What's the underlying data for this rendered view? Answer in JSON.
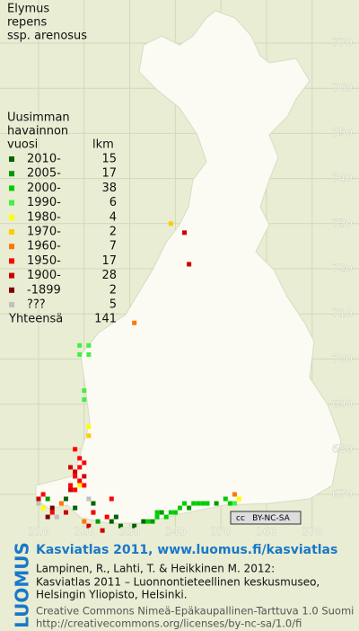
{
  "map": {
    "title": [
      "Elymus",
      "repens",
      "ssp. arenosus"
    ],
    "legend_header": [
      "Uusimman",
      "havainnon",
      "vuosi"
    ],
    "count_header": "lkm",
    "legend": [
      {
        "label": "2010-",
        "count": 15,
        "color": "#006400",
        "squares": [
          [
            322,
            666
          ],
          [
            326,
            664
          ],
          [
            328,
            663
          ],
          [
            331,
            663
          ],
          [
            333,
            664
          ],
          [
            327,
            665
          ],
          [
            318,
            667
          ],
          [
            316,
            669
          ],
          [
            322,
            668
          ]
        ]
      },
      {
        "label": "2005-",
        "count": 17,
        "color": "#009900",
        "squares": [
          [
            335,
            664
          ],
          [
            337,
            666
          ],
          [
            343,
            667
          ],
          [
            349,
            668
          ],
          [
            323,
            664
          ],
          [
            312,
            669
          ]
        ]
      },
      {
        "label": "2000-",
        "count": 38,
        "color": "#00cc00",
        "squares": [
          [
            336,
            665
          ],
          [
            338,
            665
          ],
          [
            339,
            666
          ],
          [
            340,
            666
          ],
          [
            341,
            667
          ],
          [
            342,
            668
          ],
          [
            344,
            668
          ],
          [
            345,
            668
          ],
          [
            346,
            668
          ],
          [
            347,
            668
          ],
          [
            351,
            669
          ],
          [
            352,
            668
          ],
          [
            334,
            664
          ],
          [
            336,
            666
          ]
        ]
      },
      {
        "label": "1990-",
        "count": 6,
        "color": "#44ee44",
        "squares": [
          [
            319,
            703
          ],
          [
            321,
            703
          ],
          [
            319,
            701
          ],
          [
            321,
            701
          ],
          [
            320,
            693
          ],
          [
            320,
            691
          ],
          [
            353,
            668
          ]
        ]
      },
      {
        "label": "1980-",
        "count": 4,
        "color": "#ffff00",
        "squares": [
          [
            321,
            685
          ],
          [
            311,
            667
          ],
          [
            354,
            669
          ],
          [
            319,
            672
          ]
        ]
      },
      {
        "label": "1970-",
        "count": 2,
        "color": "#ffcc00",
        "squares": [
          [
            321,
            683
          ],
          [
            339,
            730
          ]
        ]
      },
      {
        "label": "1960-",
        "count": 7,
        "color": "#ff7700",
        "squares": [
          [
            331,
            708
          ],
          [
            315,
            668
          ],
          [
            353,
            670
          ],
          [
            320,
            664
          ]
        ]
      },
      {
        "label": "1950-",
        "count": 17,
        "color": "#ff0000",
        "squares": [
          [
            318,
            680
          ],
          [
            319,
            678
          ],
          [
            320,
            677
          ],
          [
            319,
            676
          ],
          [
            318,
            674
          ],
          [
            319,
            673
          ],
          [
            317,
            672
          ],
          [
            320,
            672
          ],
          [
            318,
            671
          ],
          [
            313,
            666
          ],
          [
            311,
            670
          ],
          [
            322,
            666
          ],
          [
            325,
            665
          ],
          [
            326,
            669
          ]
        ]
      },
      {
        "label": "1900-",
        "count": 28,
        "color": "#cc0000",
        "squares": [
          [
            342,
            728
          ],
          [
            343,
            721
          ],
          [
            317,
            676
          ],
          [
            318,
            675
          ],
          [
            320,
            674
          ],
          [
            317,
            671
          ],
          [
            316,
            666
          ],
          [
            310,
            669
          ],
          [
            321,
            663
          ],
          [
            324,
            662
          ]
        ]
      },
      {
        "label": "-1899",
        "count": 2,
        "color": "#800000",
        "squares": [
          [
            313,
            667
          ],
          [
            312,
            665
          ]
        ]
      },
      {
        "label": "???",
        "count": 5,
        "color": "#c0c0c0",
        "squares": [
          [
            310,
            668
          ],
          [
            314,
            665
          ],
          [
            321,
            669
          ]
        ]
      }
    ],
    "total": {
      "label": "Yhteensä",
      "count": 141
    },
    "y_grid": [
      770,
      760,
      750,
      740,
      730,
      720,
      710,
      700,
      690,
      680,
      670
    ],
    "x_grid": [
      310,
      320,
      330,
      340,
      350,
      360,
      370
    ],
    "badge": [
      "cc",
      "BY-NC-SA"
    ]
  },
  "footer": {
    "brand": "LUOMUS",
    "link": "Kasviatlas 2011, www.luomus.fi/kasviatlas",
    "citation": [
      "Lampinen, R., Lahti, T. & Heikkinen M. 2012:",
      "Kasviatlas 2011 – Luonnontieteellinen keskusmuseo,",
      "Helsingin Yliopisto, Helsinki."
    ],
    "license": [
      "Creative Commons Nimeä-Epäkaupallinen-Tarttuva 1.0 Suomi",
      "http://creativecommons.org/licenses/by-nc-sa/1.0/fi"
    ]
  }
}
